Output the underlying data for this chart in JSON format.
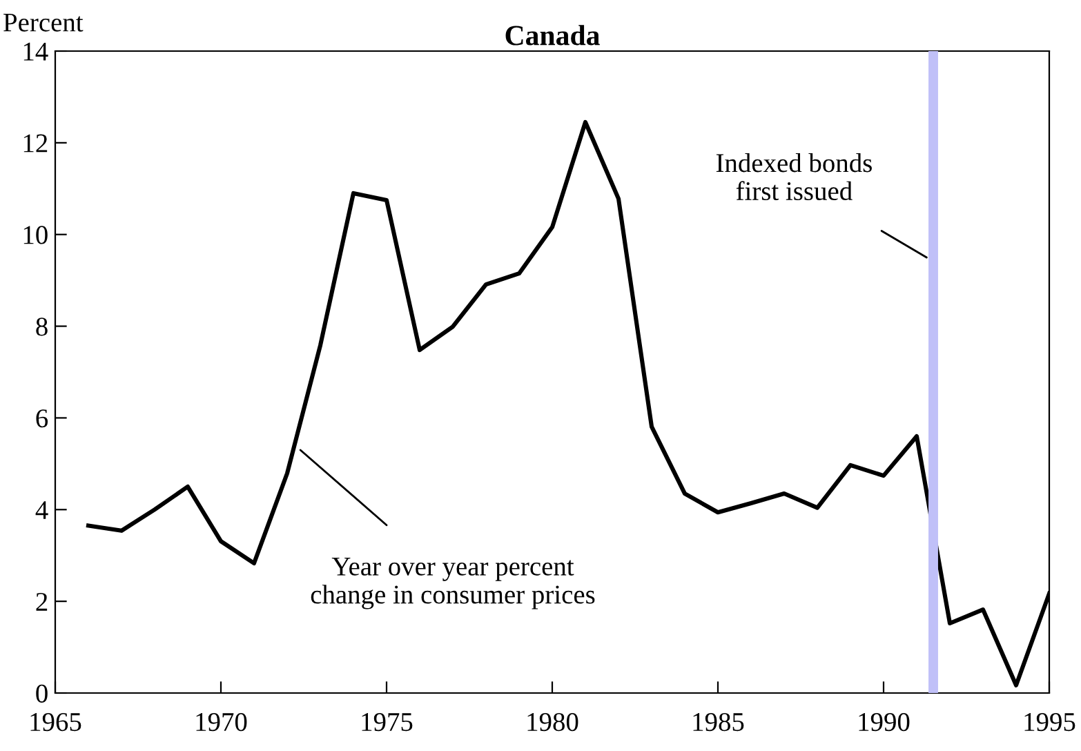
{
  "chart_data": {
    "type": "line",
    "title": "Canada",
    "ylabel": "Percent",
    "x": [
      1966,
      1967,
      1968,
      1969,
      1970,
      1971,
      1972,
      1973,
      1974,
      1975,
      1976,
      1977,
      1978,
      1979,
      1980,
      1981,
      1982,
      1983,
      1984,
      1985,
      1986,
      1987,
      1988,
      1989,
      1990,
      1991,
      1992,
      1993,
      1994,
      1995
    ],
    "series": [
      {
        "color": "#000000",
        "values": [
          3.65,
          3.54,
          4.0,
          4.5,
          3.31,
          2.83,
          4.79,
          7.58,
          10.9,
          10.75,
          7.48,
          7.99,
          8.91,
          9.15,
          10.16,
          12.45,
          10.78,
          5.81,
          4.35,
          3.94,
          4.14,
          4.35,
          4.04,
          4.97,
          4.74,
          5.6,
          1.52,
          1.82,
          0.17,
          2.17
        ]
      }
    ],
    "xlim": [
      1965,
      1995
    ],
    "xticks": [
      1965,
      1970,
      1975,
      1980,
      1985,
      1990,
      1995
    ],
    "ylim": [
      0,
      14
    ],
    "yticks": [
      0,
      2,
      4,
      6,
      8,
      10,
      12,
      14
    ],
    "ref_lines": [
      {
        "axis": "x",
        "value": 1991.5,
        "color": "#c0c0f8"
      }
    ],
    "annotations": [
      {
        "text": "Year over year percent\nchange in consumer prices",
        "x": 1972.4,
        "y": 5.3
      },
      {
        "text": "Indexed bonds\nfirst issued",
        "x": 1991.3,
        "y": 9.5
      }
    ],
    "grid": false,
    "legend": false,
    "marker": "none",
    "line_style": "solid"
  }
}
